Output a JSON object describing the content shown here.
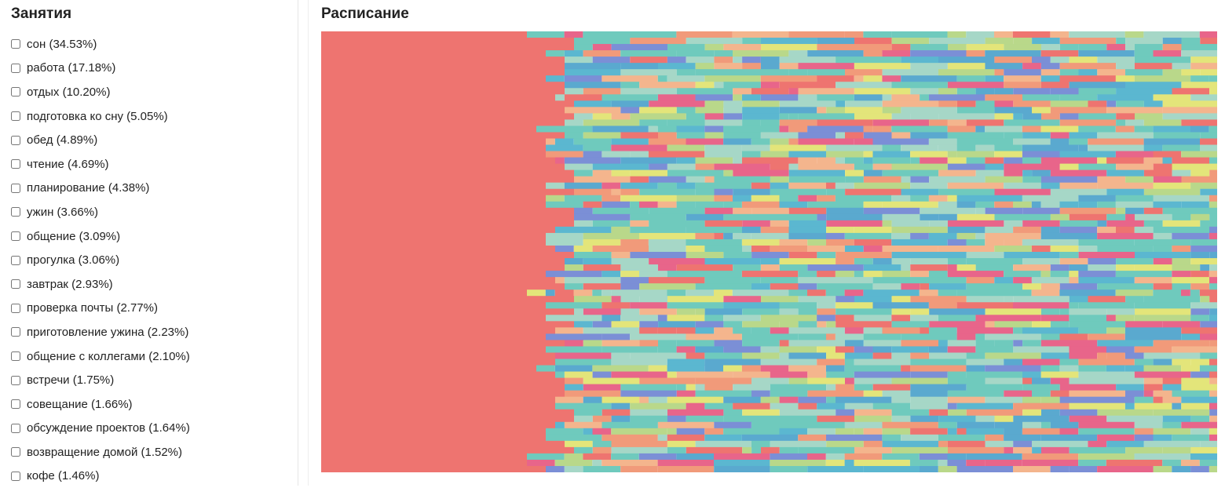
{
  "sidebar": {
    "title": "Занятия",
    "items": [
      "сон (34.53%)",
      "работа (17.18%)",
      "отдых (10.20%)",
      "подготовка ко сну (5.05%)",
      "обед (4.89%)",
      "чтение (4.69%)",
      "планирование (4.38%)",
      "ужин (3.66%)",
      "общение (3.09%)",
      "прогулка (3.06%)",
      "завтрак (2.93%)",
      "проверка почты (2.77%)",
      "приготовление ужина (2.23%)",
      "общение с коллегами (2.10%)",
      "встречи (1.75%)",
      "совещание (1.66%)",
      "обсуждение проектов (1.64%)",
      "возвращение домой (1.52%)",
      "кофе (1.46%)"
    ]
  },
  "main": {
    "title": "Расписание"
  }
}
